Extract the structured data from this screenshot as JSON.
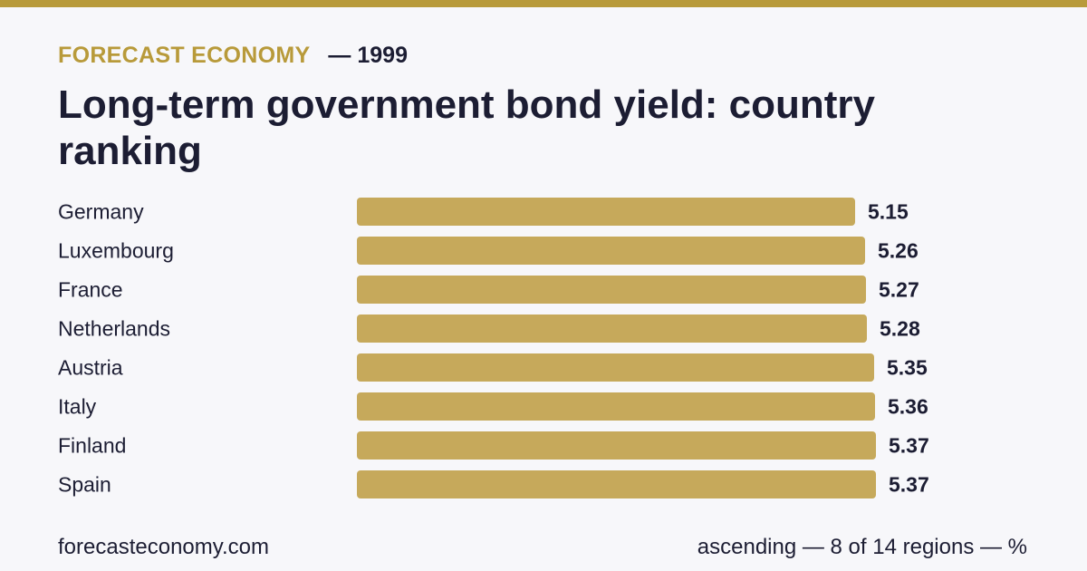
{
  "header": {
    "brand": "FORECAST ECONOMY",
    "year": "— 1999",
    "title": "Long-term government bond yield: country ranking"
  },
  "footer": {
    "site": "forecasteconomy.com",
    "note": "ascending — 8 of 14 regions — %"
  },
  "colors": {
    "accent": "#b89a3a",
    "bar": "#c6a95b",
    "text": "#1c1d33",
    "background": "#f7f7fa"
  },
  "chart_data": {
    "type": "bar",
    "orientation": "horizontal",
    "categories": [
      "Germany",
      "Luxembourg",
      "France",
      "Netherlands",
      "Austria",
      "Italy",
      "Finland",
      "Spain"
    ],
    "values": [
      5.15,
      5.26,
      5.27,
      5.28,
      5.35,
      5.36,
      5.37,
      5.37
    ],
    "value_labels": [
      "5.15",
      "5.26",
      "5.27",
      "5.28",
      "5.35",
      "5.36",
      "5.37",
      "5.37"
    ],
    "xlim": [
      0,
      5.37
    ],
    "grid": false,
    "legend": "none"
  }
}
